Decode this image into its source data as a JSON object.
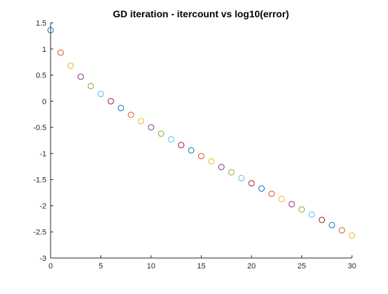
{
  "chart_data": {
    "type": "scatter",
    "title": "GD iteration - itercount vs log10(error)",
    "xlabel": "",
    "ylabel": "",
    "xlim": [
      0,
      30
    ],
    "ylim": [
      -3,
      1.5
    ],
    "xticks": [
      0,
      5,
      10,
      15,
      20,
      25,
      30
    ],
    "yticks": [
      -3,
      -2.5,
      -2,
      -1.5,
      -1,
      -0.5,
      0,
      0.5,
      1,
      1.5
    ],
    "xtick_labels": [
      "0",
      "5",
      "10",
      "15",
      "20",
      "25",
      "30"
    ],
    "ytick_labels": [
      "-3",
      "-2.5",
      "-2",
      "-1.5",
      "-1",
      "-0.5",
      "0",
      "0.5",
      "1",
      "1.5"
    ],
    "grid": false,
    "marker": "circle-open",
    "color_cycle": [
      "#0072BD",
      "#D95319",
      "#EDB120",
      "#7E2F8E",
      "#77AC30",
      "#4DBEEE",
      "#A2142F"
    ],
    "points": [
      {
        "x": 0,
        "y": 1.36
      },
      {
        "x": 1,
        "y": 0.93
      },
      {
        "x": 2,
        "y": 0.68
      },
      {
        "x": 3,
        "y": 0.47
      },
      {
        "x": 4,
        "y": 0.29
      },
      {
        "x": 5,
        "y": 0.14
      },
      {
        "x": 6,
        "y": 0.0
      },
      {
        "x": 7,
        "y": -0.13
      },
      {
        "x": 8,
        "y": -0.26
      },
      {
        "x": 9,
        "y": -0.38
      },
      {
        "x": 10,
        "y": -0.5
      },
      {
        "x": 11,
        "y": -0.62
      },
      {
        "x": 12,
        "y": -0.73
      },
      {
        "x": 13,
        "y": -0.84
      },
      {
        "x": 14,
        "y": -0.94
      },
      {
        "x": 15,
        "y": -1.05
      },
      {
        "x": 16,
        "y": -1.15
      },
      {
        "x": 17,
        "y": -1.26
      },
      {
        "x": 18,
        "y": -1.36
      },
      {
        "x": 19,
        "y": -1.47
      },
      {
        "x": 20,
        "y": -1.57
      },
      {
        "x": 21,
        "y": -1.67
      },
      {
        "x": 22,
        "y": -1.77
      },
      {
        "x": 23,
        "y": -1.87
      },
      {
        "x": 24,
        "y": -1.97
      },
      {
        "x": 25,
        "y": -2.07
      },
      {
        "x": 26,
        "y": -2.17
      },
      {
        "x": 27,
        "y": -2.27
      },
      {
        "x": 28,
        "y": -2.37
      },
      {
        "x": 29,
        "y": -2.47
      },
      {
        "x": 30,
        "y": -2.57
      }
    ]
  }
}
